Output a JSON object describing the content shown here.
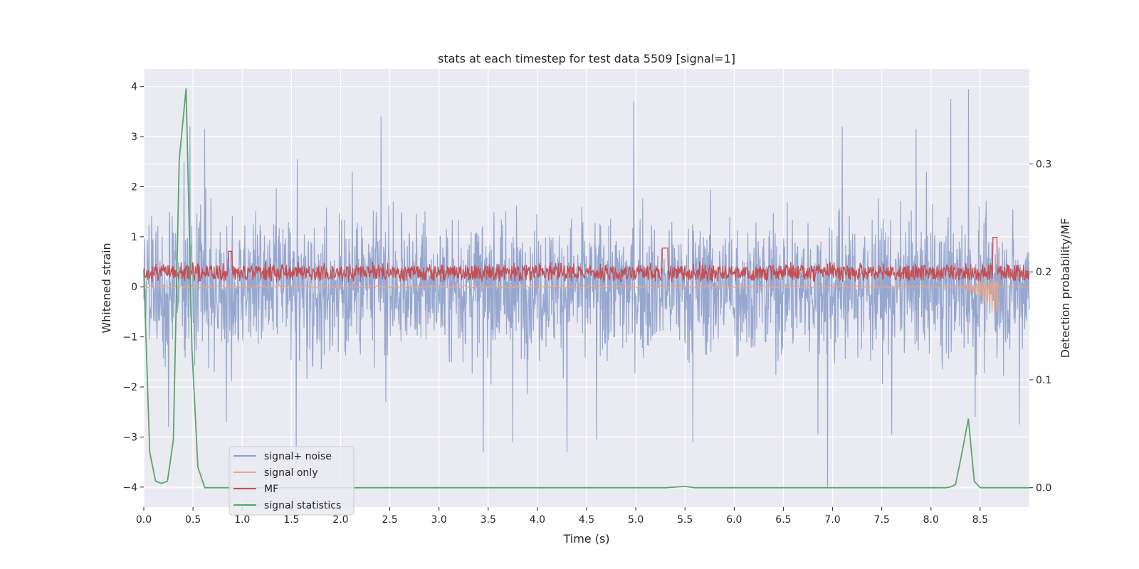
{
  "chart_data": {
    "type": "line",
    "title": "stats at each timestep for test data 5509 [signal=1]",
    "xlabel": "Time (s)",
    "ylabel": "Whitened strain",
    "ylabel_right": "Detection probability/MF",
    "xlim": [
      0.0,
      9.0
    ],
    "ylim": [
      -4.4,
      4.35
    ],
    "ylim_right": [
      -0.018,
      0.388
    ],
    "x_ticks": [
      "0.0",
      "0.5",
      "1.0",
      "1.5",
      "2.0",
      "2.5",
      "3.0",
      "3.5",
      "4.0",
      "4.5",
      "5.0",
      "5.5",
      "6.0",
      "6.5",
      "7.0",
      "7.5",
      "8.0",
      "8.5"
    ],
    "y_ticks": [
      "4",
      "3",
      "2",
      "1",
      "0",
      "−1",
      "−2",
      "−3",
      "−4"
    ],
    "y_ticks_right": [
      "0.3",
      "0.2",
      "0.1",
      "0.0"
    ],
    "grid": true,
    "legend_position": "lower-left",
    "colors": {
      "signal_noise": "#8da0cb",
      "signal_only": "#e8a58a",
      "mf": "#c44e52",
      "statistics": "#55a868",
      "background": "#eaeaf2"
    },
    "series": [
      {
        "name": "signal+ noise",
        "axis": "left",
        "description_of_envelope": "dense noise between about -2.5 and 2.5 with spikes",
        "spikes": [
          [
            0.25,
            -2.8
          ],
          [
            0.41,
            2.5
          ],
          [
            0.47,
            3.2
          ],
          [
            0.62,
            3.15
          ],
          [
            0.84,
            -2.7
          ],
          [
            1.55,
            -3.55
          ],
          [
            1.56,
            2.55
          ],
          [
            2.12,
            2.3
          ],
          [
            2.41,
            3.4
          ],
          [
            2.46,
            -2.3
          ],
          [
            3.45,
            -3.3
          ],
          [
            3.75,
            -3.1
          ],
          [
            4.3,
            -3.3
          ],
          [
            4.6,
            -3.05
          ],
          [
            4.98,
            3.7
          ],
          [
            5.58,
            -3.1
          ],
          [
            6.85,
            -2.95
          ],
          [
            6.95,
            -4.0
          ],
          [
            7.1,
            3.2
          ],
          [
            7.6,
            -2.95
          ],
          [
            7.85,
            3.15
          ],
          [
            8.2,
            3.75
          ],
          [
            8.38,
            3.95
          ],
          [
            8.45,
            -2.6
          ],
          [
            8.9,
            -2.75
          ]
        ]
      },
      {
        "name": "signal only",
        "axis": "left",
        "description_of_envelope": "near zero until about 8.3 s, then chirp reaching about -0.6 at 8.65 s"
      },
      {
        "name": "MF",
        "axis": "right",
        "description_of_envelope": "between about 0.19 and 0.215 probability-scale, peaks near 0.22 at 5.3 s and 8.65 s"
      },
      {
        "name": "signal statistics",
        "axis": "right",
        "x": [
          0.0,
          0.06,
          0.12,
          0.18,
          0.24,
          0.3,
          0.36,
          0.43,
          0.49,
          0.55,
          0.62,
          1.0,
          2.0,
          3.0,
          4.0,
          5.0,
          5.3,
          5.5,
          5.6,
          6.0,
          7.0,
          8.0,
          8.15,
          8.2,
          8.25,
          8.31,
          8.38,
          8.44,
          8.5,
          9.0
        ],
        "values": [
          0.202,
          0.033,
          0.006,
          0.004,
          0.006,
          0.044,
          0.304,
          0.37,
          0.128,
          0.019,
          0.0,
          0.0,
          0.0,
          0.0,
          0.0,
          0.0,
          0.0,
          0.0011,
          0.0,
          0.0,
          0.0,
          0.0,
          0.0,
          0.0007,
          0.003,
          0.03,
          0.064,
          0.006,
          0.0,
          0.0
        ]
      }
    ]
  }
}
